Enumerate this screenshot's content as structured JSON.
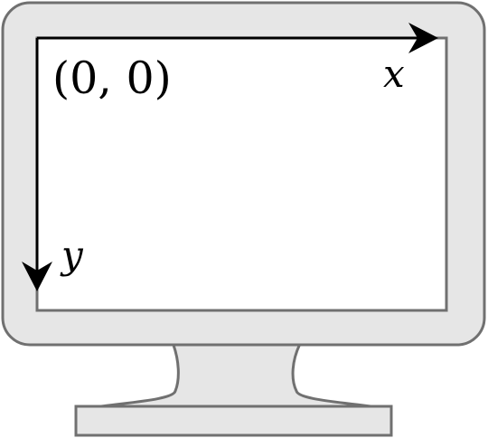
{
  "labels": {
    "origin": "(0, 0)",
    "x_axis": "x",
    "y_axis": "y"
  },
  "colors": {
    "monitor_fill": "#e6e6e6",
    "monitor_stroke": "#707070",
    "screen_fill": "#ffffff",
    "axis_color": "#000000"
  },
  "icons": {
    "monitor": "monitor-icon",
    "x_arrow": "arrow-right-icon",
    "y_arrow": "arrow-down-icon"
  }
}
